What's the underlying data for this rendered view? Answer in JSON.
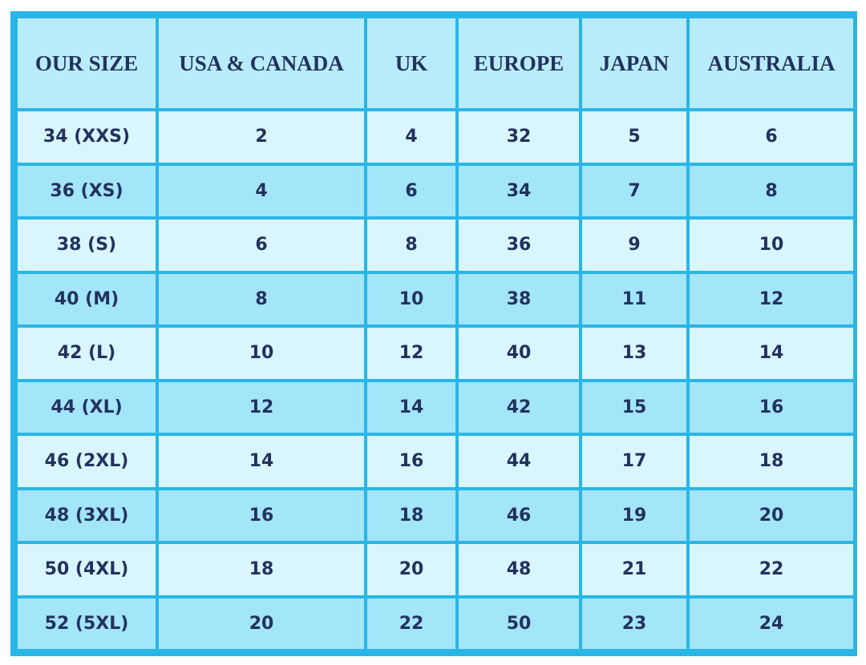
{
  "table": {
    "headers": [
      "OUR SIZE",
      "USA & CANADA",
      "UK",
      "EUROPE",
      "JAPAN",
      "AUSTRALIA"
    ],
    "rows": [
      [
        "34 (XXS)",
        "2",
        "4",
        "32",
        "5",
        "6"
      ],
      [
        "36 (XS)",
        "4",
        "6",
        "34",
        "7",
        "8"
      ],
      [
        "38 (S)",
        "6",
        "8",
        "36",
        "9",
        "10"
      ],
      [
        "40 (M)",
        "8",
        "10",
        "38",
        "11",
        "12"
      ],
      [
        "42 (L)",
        "10",
        "12",
        "40",
        "13",
        "14"
      ],
      [
        "44 (XL)",
        "12",
        "14",
        "42",
        "15",
        "16"
      ],
      [
        "46 (2XL)",
        "14",
        "16",
        "44",
        "17",
        "18"
      ],
      [
        "48 (3XL)",
        "16",
        "18",
        "46",
        "19",
        "20"
      ],
      [
        "50 (4XL)",
        "18",
        "20",
        "48",
        "21",
        "22"
      ],
      [
        "52 (5XL)",
        "20",
        "22",
        "50",
        "23",
        "24"
      ]
    ]
  },
  "colors": {
    "border": "#29b6e6",
    "header_bg": "#b9ecfb",
    "row_light": "#d9f5fd",
    "row_dark": "#a3e5f9",
    "text": "#22325e"
  }
}
